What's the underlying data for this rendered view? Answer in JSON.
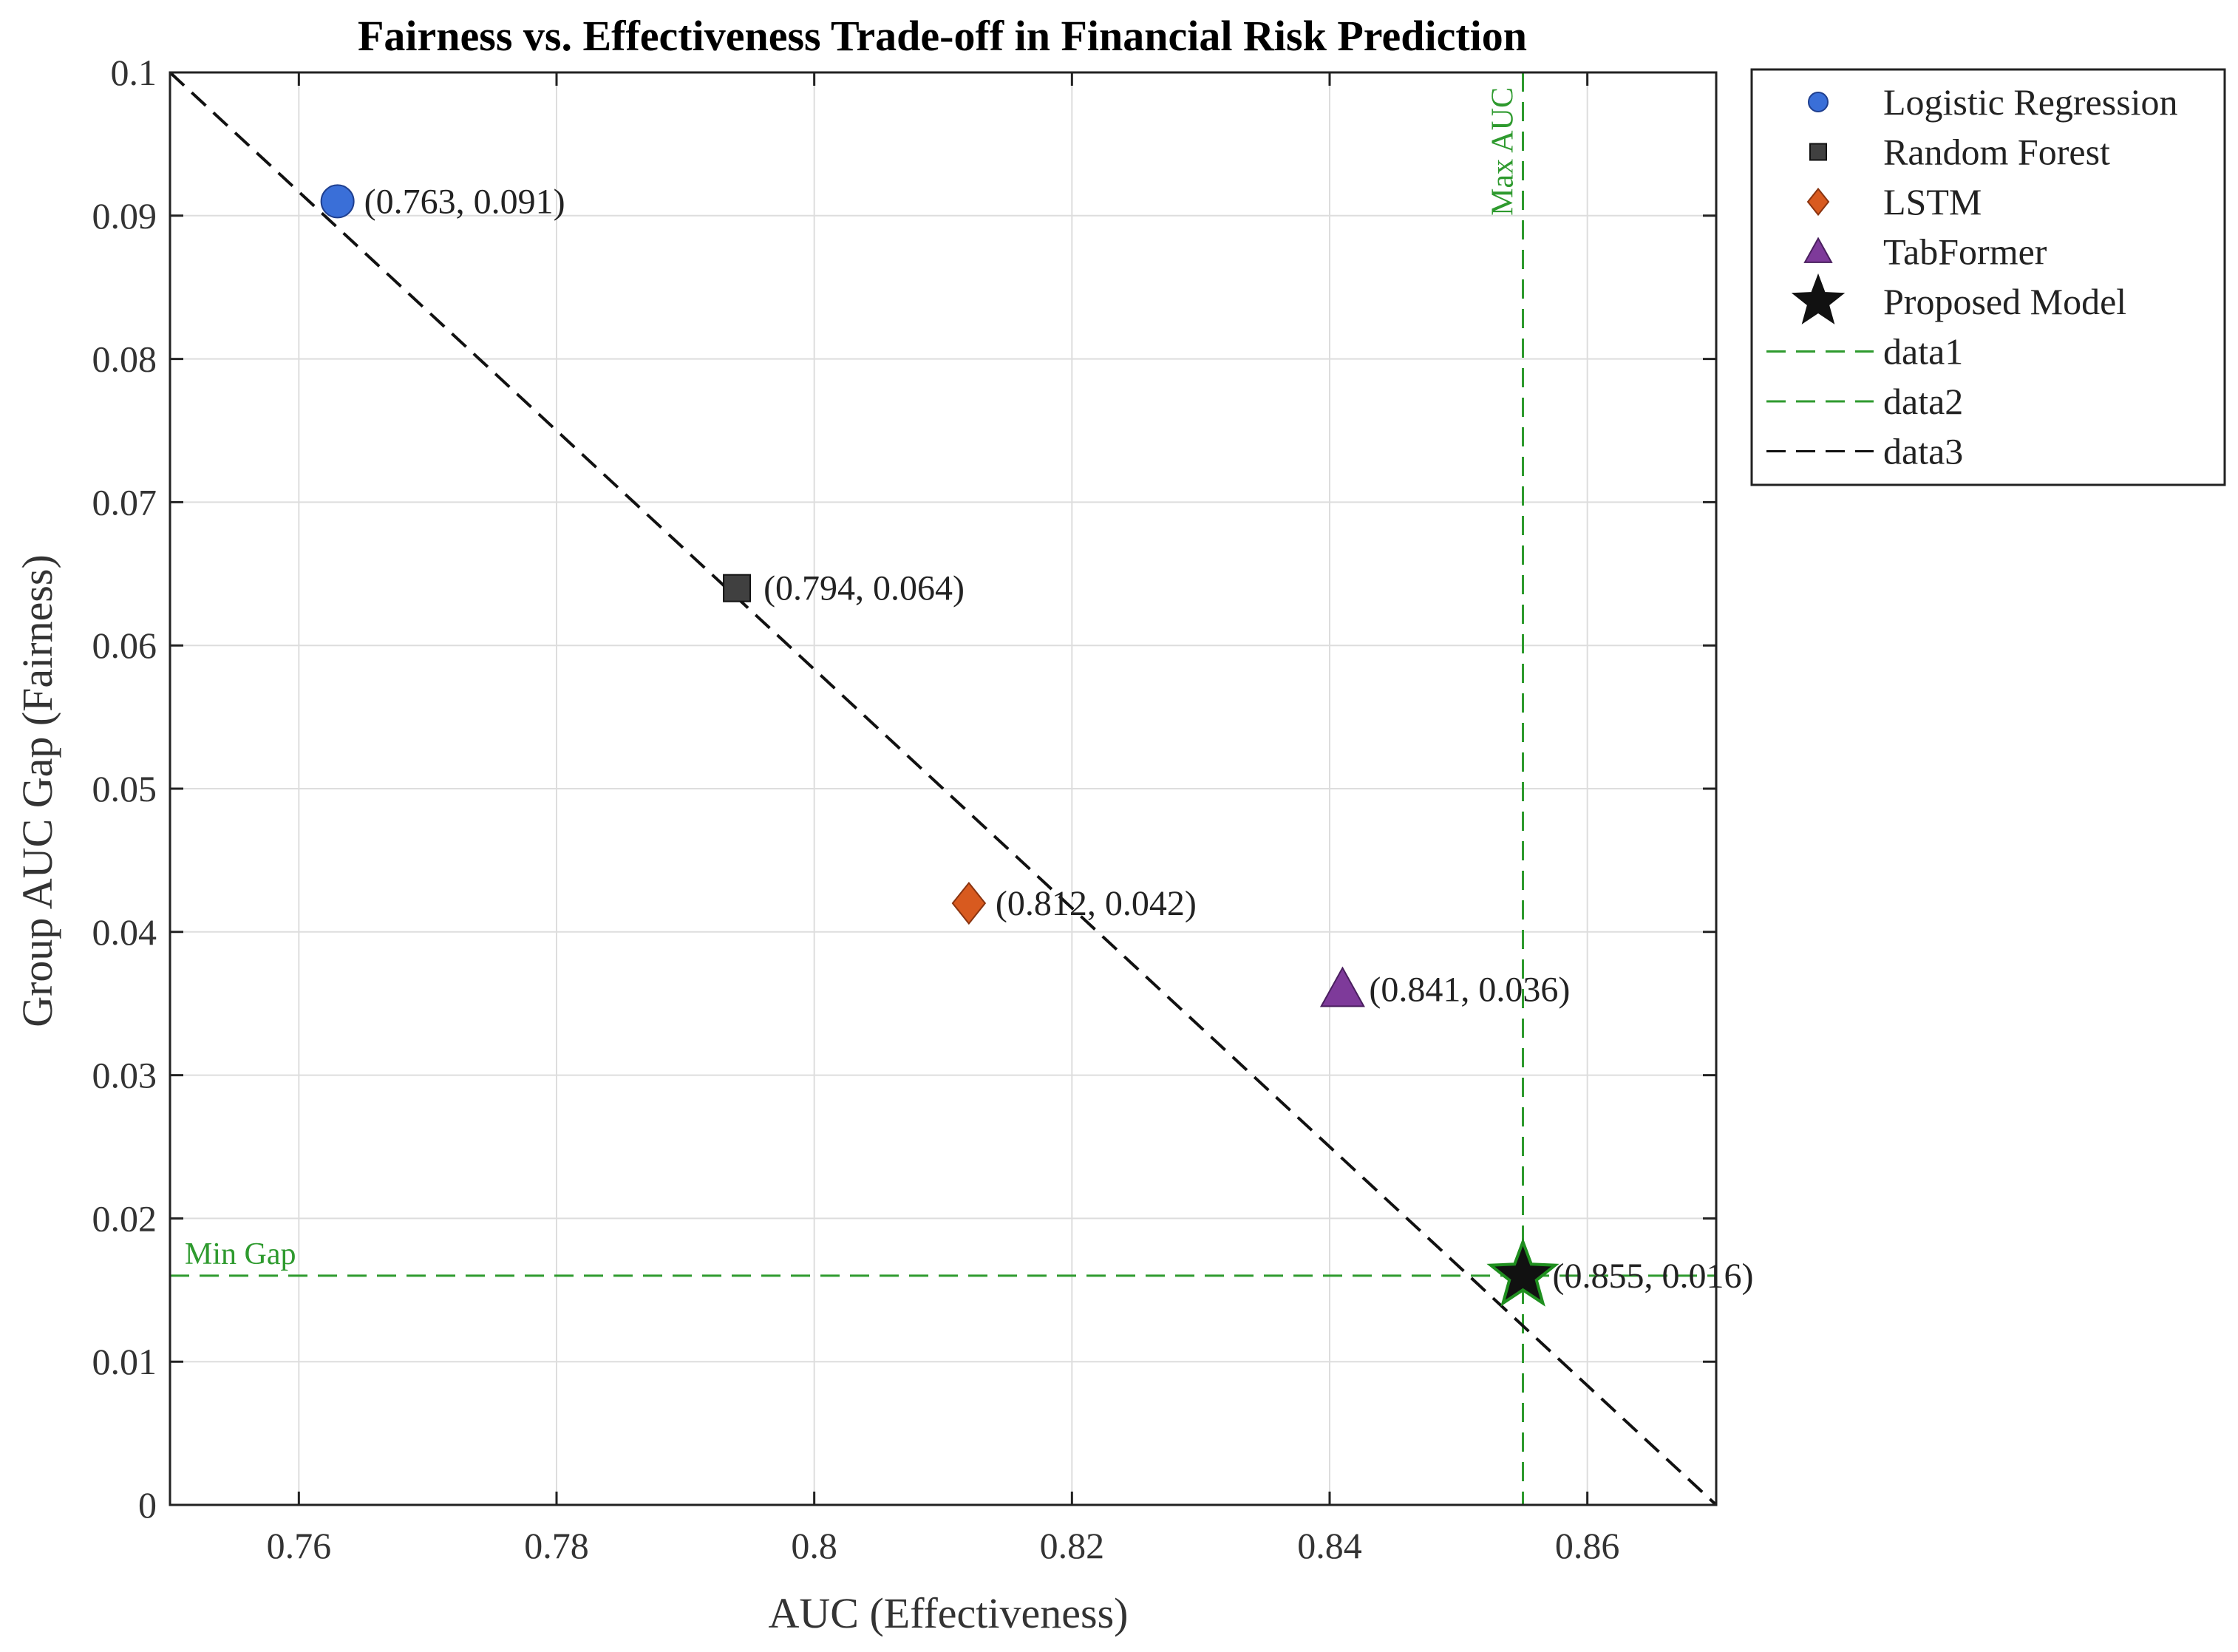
{
  "chart_data": {
    "type": "scatter",
    "title": "Fairness vs. Effectiveness Trade-off in Financial Risk Prediction",
    "xlabel": "AUC (Effectiveness)",
    "ylabel": "Group AUC Gap (Fairness)",
    "xlim": [
      0.75,
      0.87
    ],
    "ylim": [
      0,
      0.1
    ],
    "grid": true,
    "x_ticks": [
      0.76,
      0.78,
      0.8,
      0.82,
      0.84,
      0.86
    ],
    "x_tick_labels": [
      "0.76",
      "0.78",
      "0.8",
      "0.82",
      "0.84",
      "0.86"
    ],
    "y_ticks": [
      0,
      0.01,
      0.02,
      0.03,
      0.04,
      0.05,
      0.06,
      0.07,
      0.08,
      0.09,
      0.1
    ],
    "y_tick_labels": [
      "0",
      "0.01",
      "0.02",
      "0.03",
      "0.04",
      "0.05",
      "0.06",
      "0.07",
      "0.08",
      "0.09",
      "0.1"
    ],
    "series": [
      {
        "name": "Logistic Regression",
        "marker": "circle",
        "color": "#3a6fd8",
        "x": 0.763,
        "y": 0.091,
        "label": "(0.763, 0.091)"
      },
      {
        "name": "Random Forest",
        "marker": "square",
        "color": "#404040",
        "x": 0.794,
        "y": 0.064,
        "label": "(0.794, 0.064)"
      },
      {
        "name": "LSTM",
        "marker": "diamond",
        "color": "#d85a1f",
        "x": 0.812,
        "y": 0.042,
        "label": "(0.812, 0.042)"
      },
      {
        "name": "TabFormer",
        "marker": "triangle",
        "color": "#7e3a9a",
        "x": 0.841,
        "y": 0.036,
        "label": "(0.841, 0.036)"
      },
      {
        "name": "Proposed Model",
        "marker": "star",
        "color": "#111111",
        "edge_color": "#1f8f1f",
        "x": 0.855,
        "y": 0.016,
        "label": "(0.855, 0.016)"
      }
    ],
    "reference_lines": [
      {
        "name": "data1",
        "orientation": "vertical",
        "x": 0.855,
        "color": "#2e9a2e",
        "style": "dashed",
        "annotation": "Max AUC"
      },
      {
        "name": "data2",
        "orientation": "horizontal",
        "y": 0.016,
        "color": "#2e9a2e",
        "style": "dashed",
        "annotation": "Min Gap"
      },
      {
        "name": "data3",
        "orientation": "diagonal",
        "x": [
          0.75,
          0.87
        ],
        "y": [
          0.1,
          0.0
        ],
        "color": "#111111",
        "style": "dashed"
      }
    ],
    "legend": {
      "position": "outside-top-right",
      "entries": [
        {
          "label": "Logistic Regression",
          "kind": "marker",
          "marker": "circle",
          "color": "#3a6fd8"
        },
        {
          "label": "Random Forest",
          "kind": "marker",
          "marker": "square",
          "color": "#404040"
        },
        {
          "label": "LSTM",
          "kind": "marker",
          "marker": "diamond",
          "color": "#d85a1f"
        },
        {
          "label": "TabFormer",
          "kind": "marker",
          "marker": "triangle",
          "color": "#7e3a9a"
        },
        {
          "label": "Proposed Model",
          "kind": "marker",
          "marker": "star",
          "color": "#111111"
        },
        {
          "label": "data1",
          "kind": "line",
          "color": "#2e9a2e"
        },
        {
          "label": "data2",
          "kind": "line",
          "color": "#2e9a2e"
        },
        {
          "label": "data3",
          "kind": "line",
          "color": "#111111"
        }
      ]
    }
  }
}
